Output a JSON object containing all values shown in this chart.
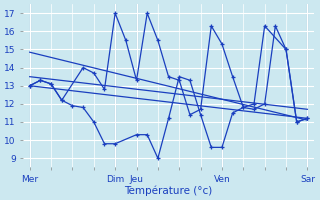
{
  "background_color": "#cce8f0",
  "grid_color": "#ffffff",
  "line_color": "#1a3fbf",
  "xlabel": "Température (°c)",
  "ylim": [
    8.5,
    17.5
  ],
  "yticks": [
    9,
    10,
    11,
    12,
    13,
    14,
    15,
    16,
    17
  ],
  "x_tick_labels": [
    "Mer",
    "",
    "",
    "",
    "Dim",
    "Jeu",
    "",
    "",
    "",
    "Ven",
    "",
    "",
    "",
    "Sar"
  ],
  "x_tick_positions": [
    0,
    1,
    2,
    3,
    4,
    5,
    6,
    7,
    8,
    9,
    10,
    11,
    12,
    13
  ],
  "major_tick_positions": [
    0,
    4,
    5,
    9,
    13
  ],
  "major_tick_labels": [
    "Mer",
    "Dim",
    "Jeu",
    "Ven",
    "Sar"
  ],
  "xlim": [
    -0.3,
    13.3
  ],
  "series_low": {
    "x": [
      0,
      0.5,
      1.0,
      1.5,
      2.0,
      2.5,
      3.0,
      3.5,
      4.0,
      5.0,
      5.5,
      6.0,
      6.5,
      7.0,
      7.5,
      8.0,
      8.5,
      9.0,
      9.5,
      10.0,
      10.5,
      11.0,
      11.5,
      12.0,
      12.5,
      13.0
    ],
    "y": [
      13.0,
      13.3,
      13.1,
      12.2,
      11.9,
      11.8,
      11.0,
      9.8,
      9.8,
      10.3,
      10.3,
      9.0,
      11.2,
      13.5,
      13.3,
      11.4,
      9.6,
      9.6,
      11.5,
      11.8,
      11.7,
      12.0,
      16.3,
      15.0,
      11.0,
      11.2
    ]
  },
  "series_high": {
    "x": [
      0,
      0.5,
      1.0,
      1.5,
      2.5,
      3.0,
      3.5,
      4.0,
      4.5,
      5.0,
      5.5,
      6.0,
      6.5,
      7.0,
      7.5,
      8.0,
      8.5,
      9.0,
      9.5,
      10.0,
      10.5,
      11.0,
      12.0,
      12.5,
      13.0
    ],
    "y": [
      13.0,
      13.3,
      13.1,
      12.2,
      14.0,
      13.7,
      12.8,
      17.0,
      15.5,
      13.3,
      17.0,
      15.5,
      13.5,
      13.3,
      11.4,
      11.7,
      16.3,
      15.3,
      13.5,
      11.8,
      12.0,
      16.3,
      15.0,
      11.0,
      11.2
    ]
  },
  "trend1": {
    "x": [
      0,
      13
    ],
    "y": [
      14.85,
      11.1
    ]
  },
  "trend2": {
    "x": [
      0,
      13
    ],
    "y": [
      13.5,
      11.7
    ]
  },
  "trend3": {
    "x": [
      0,
      13
    ],
    "y": [
      13.0,
      11.2
    ]
  }
}
